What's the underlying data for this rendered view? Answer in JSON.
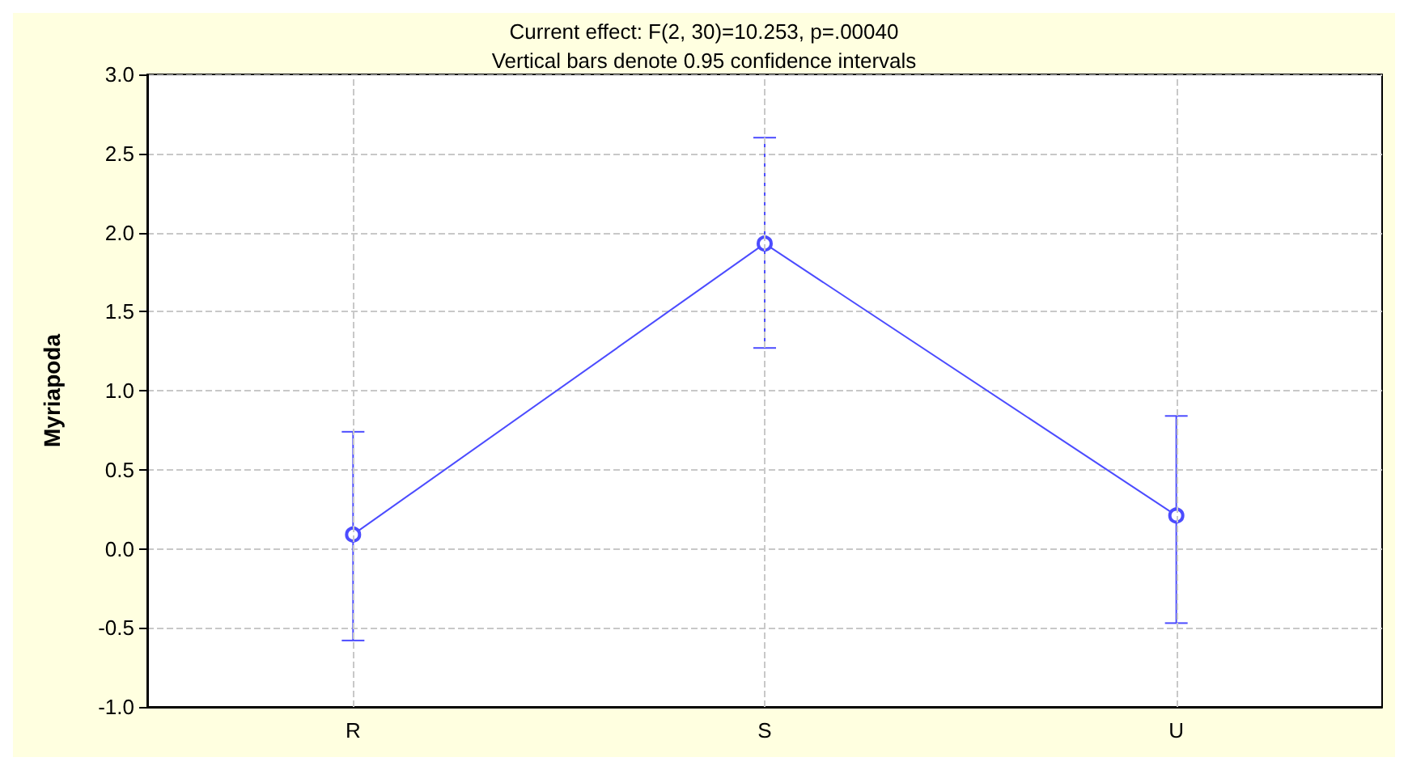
{
  "chart_data": {
    "type": "line",
    "title": "Current effect: F(2, 30)=10.253, p=.00040",
    "subtitle": "Vertical bars denote 0.95 confidence intervals",
    "ylabel": "Myriapoda",
    "categories": [
      "R",
      "S",
      "U"
    ],
    "series": [
      {
        "color": "#4c4cff",
        "values": [
          0.09,
          1.93,
          0.21
        ],
        "errors": [
          [
            -0.58,
            0.74
          ],
          [
            1.27,
            2.6
          ],
          [
            -0.47,
            0.84
          ]
        ]
      }
    ],
    "ylim": [
      -1,
      3
    ],
    "yticks": [
      {
        "value": -1,
        "label": "-1.0"
      },
      {
        "value": -0.5,
        "label": "-0.5"
      },
      {
        "value": 0,
        "label": "0.0"
      },
      {
        "value": 0.5,
        "label": "0.5"
      },
      {
        "value": 1,
        "label": "1.0"
      },
      {
        "value": 1.5,
        "label": "1.5"
      },
      {
        "value": 2,
        "label": "2.0"
      },
      {
        "value": 2.5,
        "label": "2.5"
      },
      {
        "value": 3,
        "label": "3.0"
      }
    ],
    "grid": true,
    "marker": "circle",
    "line_style": "solid"
  }
}
